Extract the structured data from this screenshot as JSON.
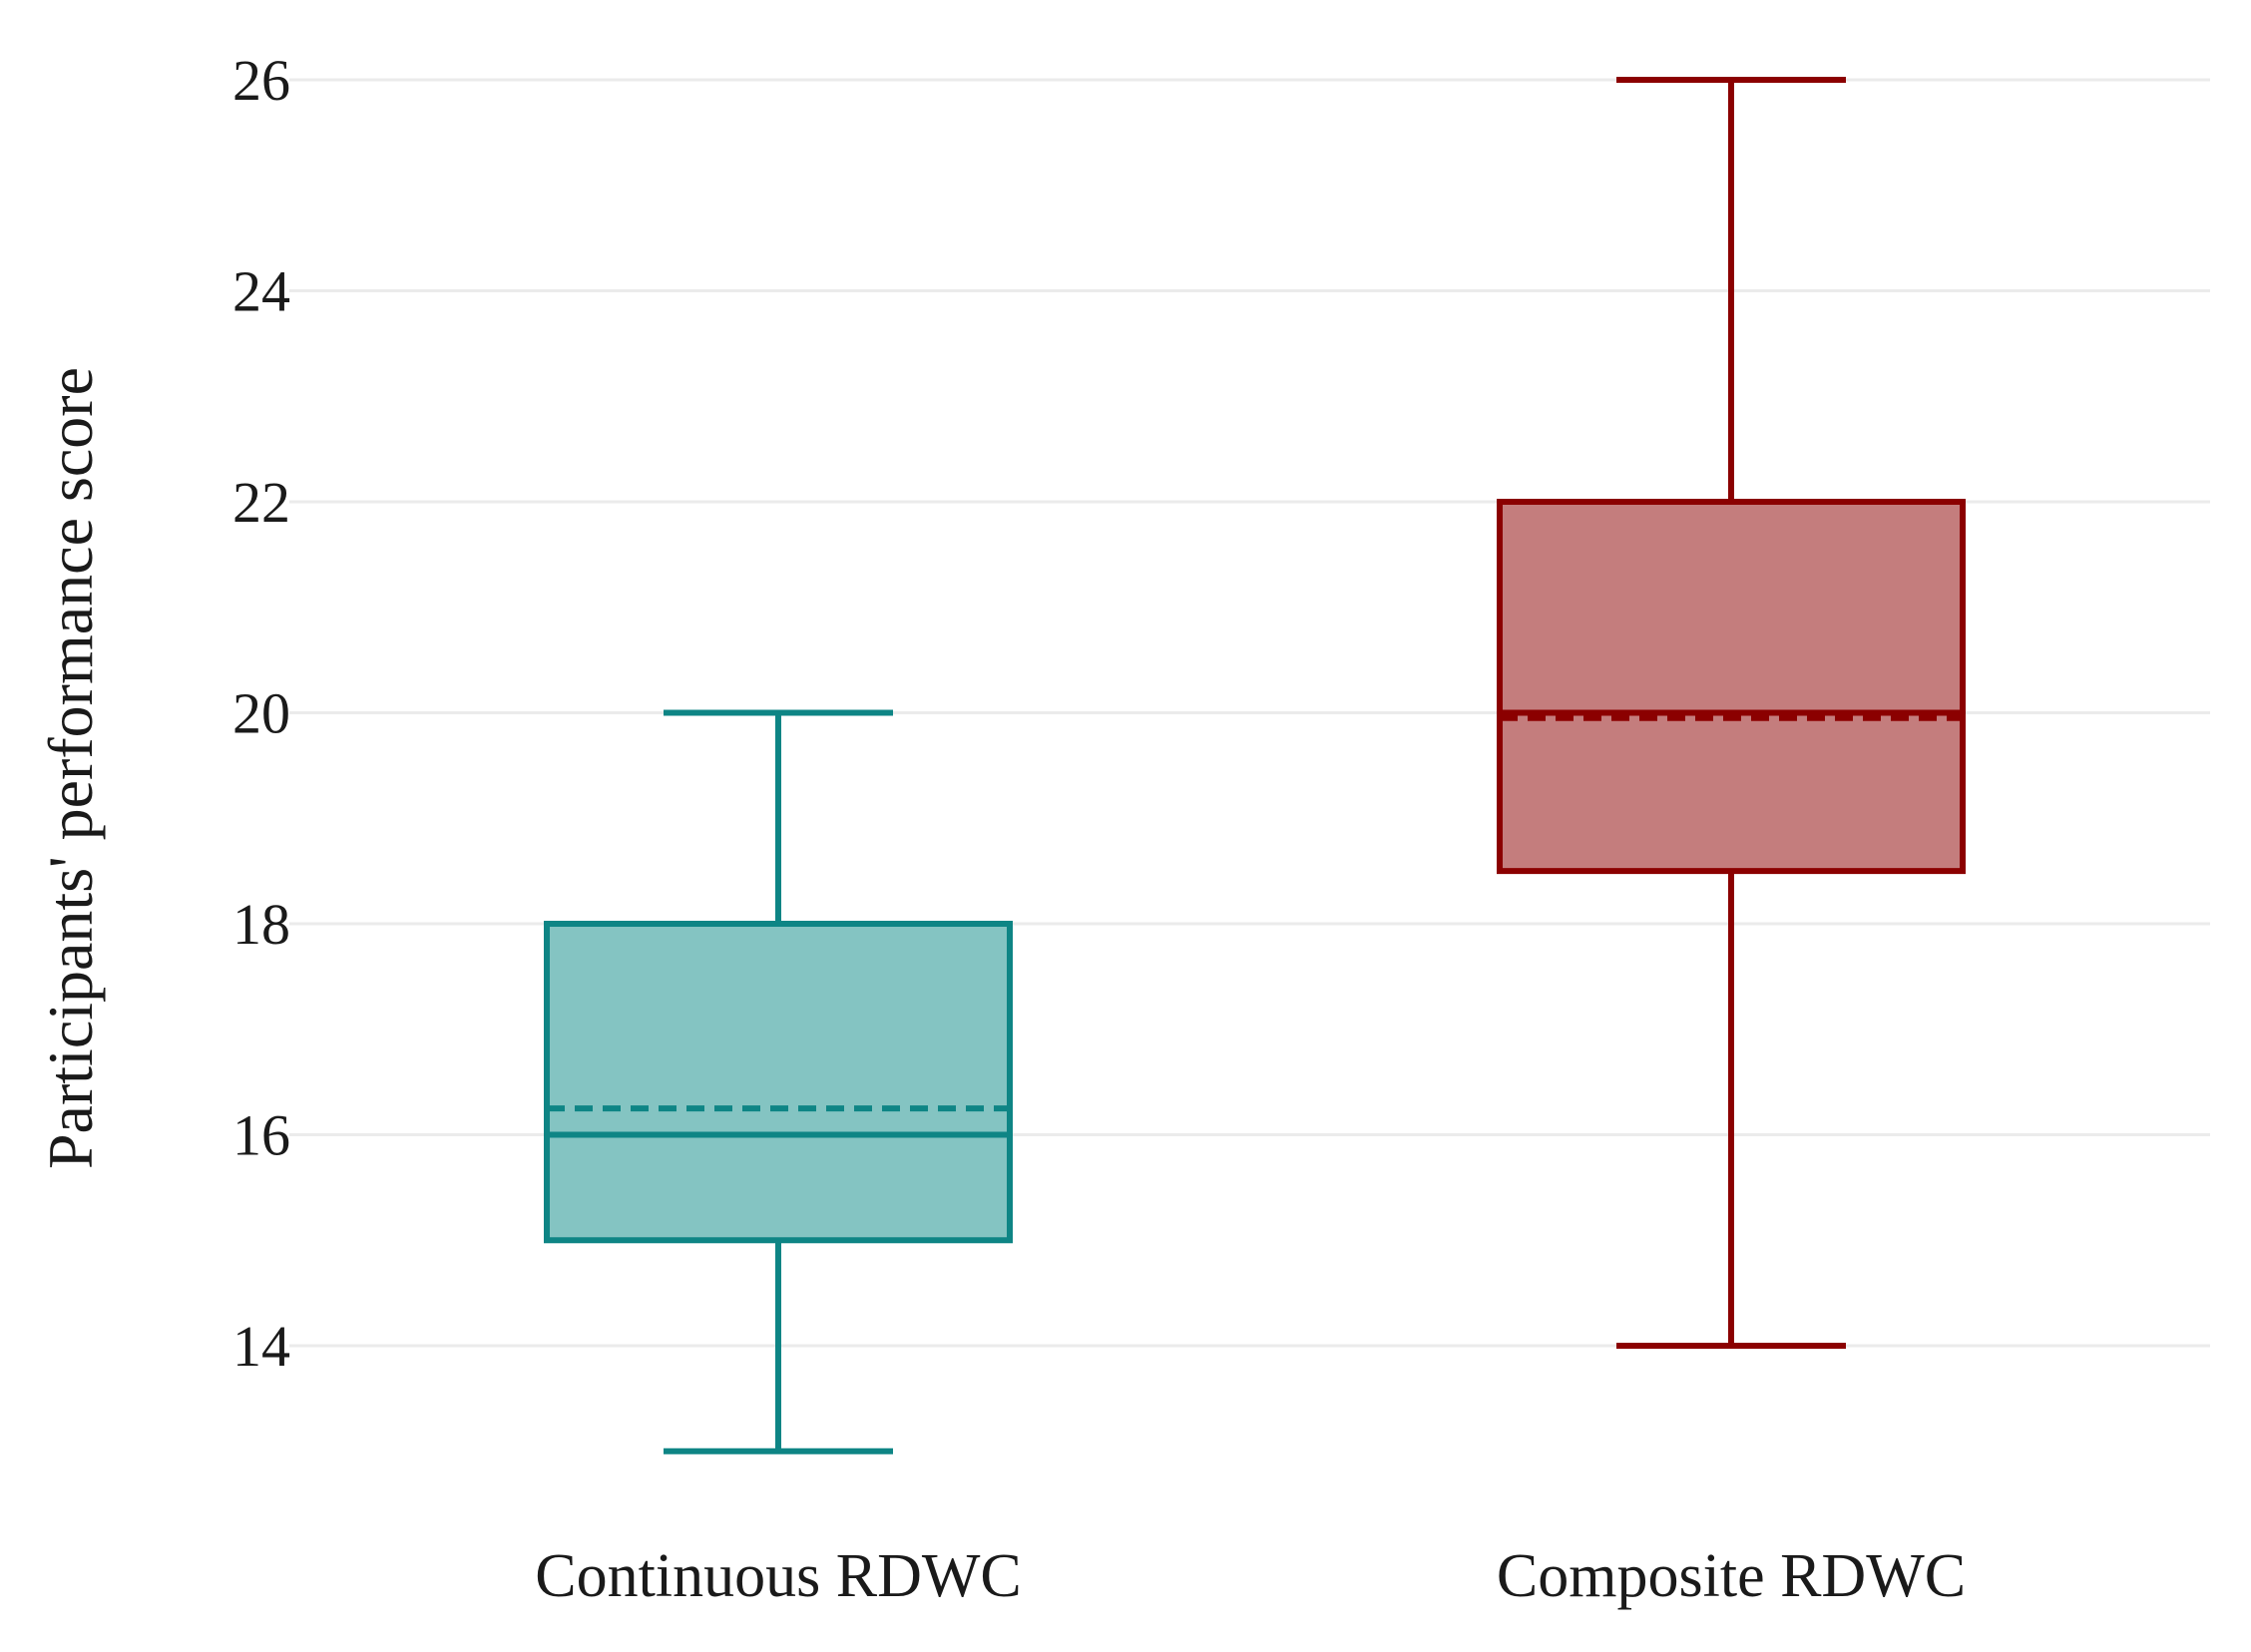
{
  "chart_data": {
    "type": "box",
    "ylabel": "Participants' performance score",
    "xlabel": "",
    "ylim": [
      12.6,
      26.4
    ],
    "yticks": [
      14,
      16,
      18,
      20,
      22,
      24,
      26
    ],
    "grid": true,
    "categories": [
      "Continuous RDWC",
      "Composite RDWC"
    ],
    "boxes": [
      {
        "category": "Continuous RDWC",
        "min": 13,
        "q1": 15,
        "median": 16,
        "mean": 16.25,
        "q3": 18,
        "max": 20,
        "stroke": "#0e8585",
        "fill": "#84c4c2"
      },
      {
        "category": "Composite RDWC",
        "min": 14,
        "q1": 18.5,
        "median": 20,
        "mean": 19.95,
        "q3": 22,
        "max": 26,
        "stroke": "#8b0000",
        "fill": "#c47d7d"
      }
    ]
  }
}
